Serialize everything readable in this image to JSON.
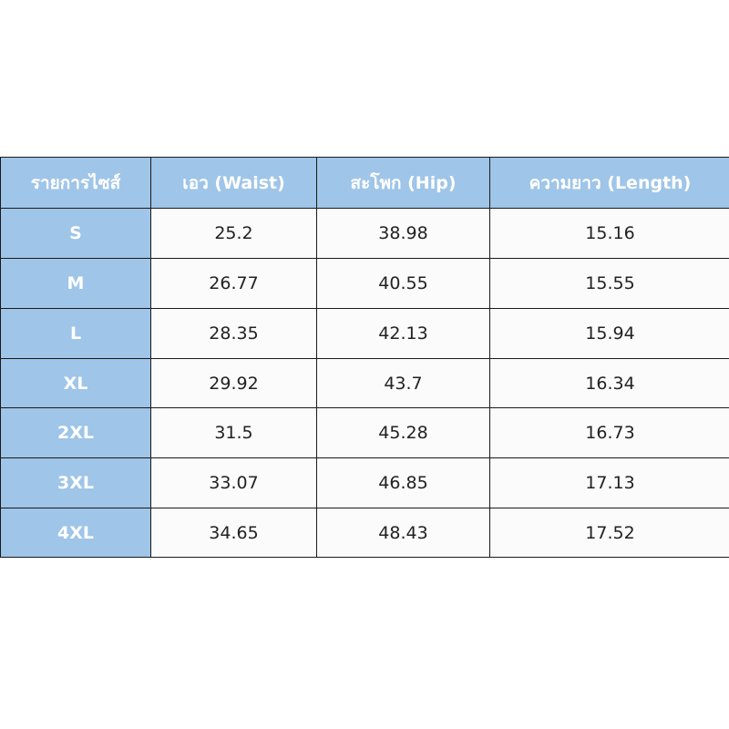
{
  "table": {
    "header": [
      "รายการไซส์",
      "เอว (Waist)",
      "สะโพก (Hip)",
      "ความยาว (Length)"
    ],
    "rows": [
      [
        "S",
        "25.2",
        "38.98",
        "15.16"
      ],
      [
        "M",
        "26.77",
        "40.55",
        "15.55"
      ],
      [
        "L",
        "28.35",
        "42.13",
        "15.94"
      ],
      [
        "XL",
        "29.92",
        "43.7",
        "16.34"
      ],
      [
        "2XL",
        "31.5",
        "45.28",
        "16.73"
      ],
      [
        "3XL",
        "33.07",
        "46.85",
        "17.13"
      ],
      [
        "4XL",
        "34.65",
        "48.43",
        "17.52"
      ]
    ]
  }
}
